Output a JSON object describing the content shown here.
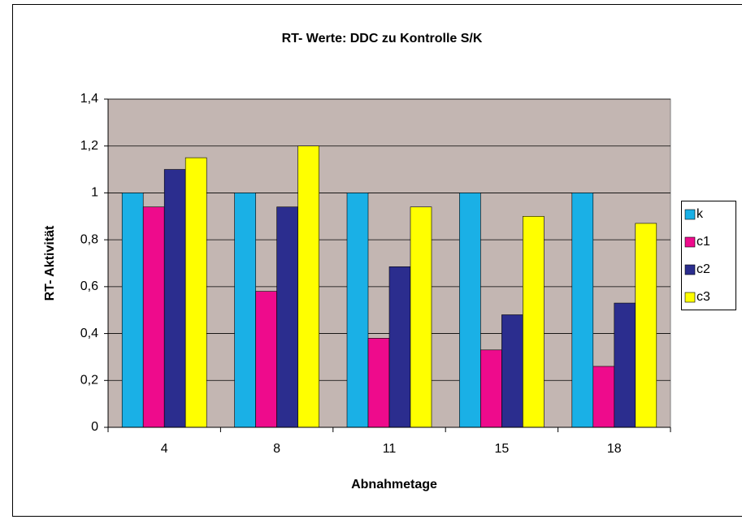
{
  "chart_data": {
    "type": "bar",
    "title": "RT- Werte: DDC zu Kontrolle S/K",
    "x_label": "Abnahmetage",
    "y_label": "RT- Aktivität",
    "categories": [
      "4",
      "8",
      "11",
      "15",
      "18"
    ],
    "series": [
      {
        "name": "k",
        "color": "#1ab0e6",
        "values": [
          1,
          1,
          1,
          1,
          1
        ]
      },
      {
        "name": "c1",
        "color": "#ee0b8c",
        "values": [
          0.94,
          0.58,
          0.38,
          0.33,
          0.26
        ]
      },
      {
        "name": "c2",
        "color": "#2b2d8e",
        "values": [
          1.1,
          0.94,
          0.685,
          0.48,
          0.53
        ]
      },
      {
        "name": "c3",
        "color": "#ffff00",
        "values": [
          1.15,
          1.2,
          0.94,
          0.9,
          0.87
        ]
      }
    ],
    "ylim": [
      0,
      1.4
    ],
    "yticks": [
      0,
      {
        "value": 0.2,
        "label": "0,2"
      },
      {
        "value": 0.4,
        "label": "0,4"
      },
      {
        "value": 0.6,
        "label": "0,6"
      },
      {
        "value": 0.8,
        "label": "0,8"
      },
      1,
      {
        "value": 1.2,
        "label": "1,2"
      },
      {
        "value": 1.4,
        "label": "1,4"
      }
    ],
    "grid": true,
    "plot_background": "#c3b6b2",
    "legend": "right"
  }
}
